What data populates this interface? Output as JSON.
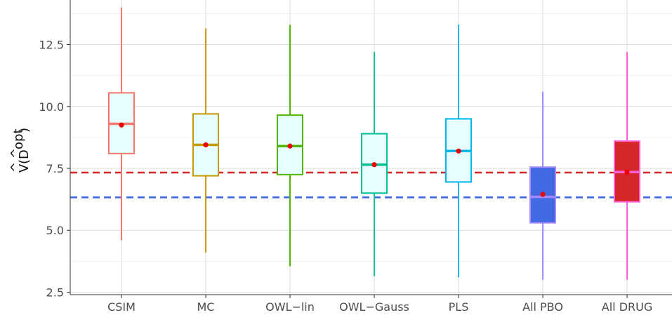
{
  "chart_data": {
    "type": "boxplot",
    "ylabel": "V̂(D̂ᵒᵖᵗ)",
    "ylabel_parts": {
      "main": "V",
      "hat": "^",
      "inner": "D",
      "inner_hat": "^",
      "sup": "opt"
    },
    "ylim": [
      2.4,
      14.3
    ],
    "yticks": [
      2.5,
      5.0,
      7.5,
      10.0,
      12.5
    ],
    "ytick_labels": [
      "2.5",
      "5.0",
      "7.5",
      "10.0",
      "12.5"
    ],
    "grid": true,
    "categories": [
      "CSIM",
      "MC",
      "OWL−lin",
      "OWL−Gauss",
      "PLS",
      "All PBO",
      "All DRUG"
    ],
    "boxes": [
      {
        "name": "CSIM",
        "min": 4.6,
        "q1": 8.1,
        "median": 9.3,
        "q3": 10.55,
        "max": 14.0,
        "mean": 9.25,
        "color": "#f8766d",
        "fill": "#e6ffff"
      },
      {
        "name": "MC",
        "min": 4.1,
        "q1": 7.2,
        "median": 8.45,
        "q3": 9.7,
        "max": 13.15,
        "mean": 8.45,
        "color": "#c49a00",
        "fill": "#e6ffff"
      },
      {
        "name": "OWL−lin",
        "min": 3.55,
        "q1": 7.25,
        "median": 8.4,
        "q3": 9.65,
        "max": 13.3,
        "mean": 8.4,
        "color": "#53b400",
        "fill": "#e6ffff"
      },
      {
        "name": "OWL−Gauss",
        "min": 3.15,
        "q1": 6.5,
        "median": 7.65,
        "q3": 8.9,
        "max": 12.2,
        "mean": 7.65,
        "color": "#00c094",
        "fill": "#e6ffff"
      },
      {
        "name": "PLS",
        "min": 3.1,
        "q1": 6.95,
        "median": 8.2,
        "q3": 9.5,
        "max": 13.3,
        "mean": 8.2,
        "color": "#00b6eb",
        "fill": "#e6ffff"
      },
      {
        "name": "All PBO",
        "min": 3.0,
        "q1": 5.3,
        "median": 6.35,
        "q3": 7.55,
        "max": 10.6,
        "mean": 6.45,
        "color": "#a58aff",
        "fill": "#4169e1"
      },
      {
        "name": "All DRUG",
        "min": 3.0,
        "q1": 6.15,
        "median": 7.35,
        "q3": 8.6,
        "max": 12.2,
        "mean": 7.35,
        "color": "#fb61d7",
        "fill": "#d62728"
      }
    ],
    "reference_lines": [
      {
        "y": 7.33,
        "color": "#d62728",
        "style": "dashed"
      },
      {
        "y": 6.33,
        "color": "#4169e1",
        "style": "dashed"
      }
    ],
    "mean_marker_color": "#ee0000"
  }
}
